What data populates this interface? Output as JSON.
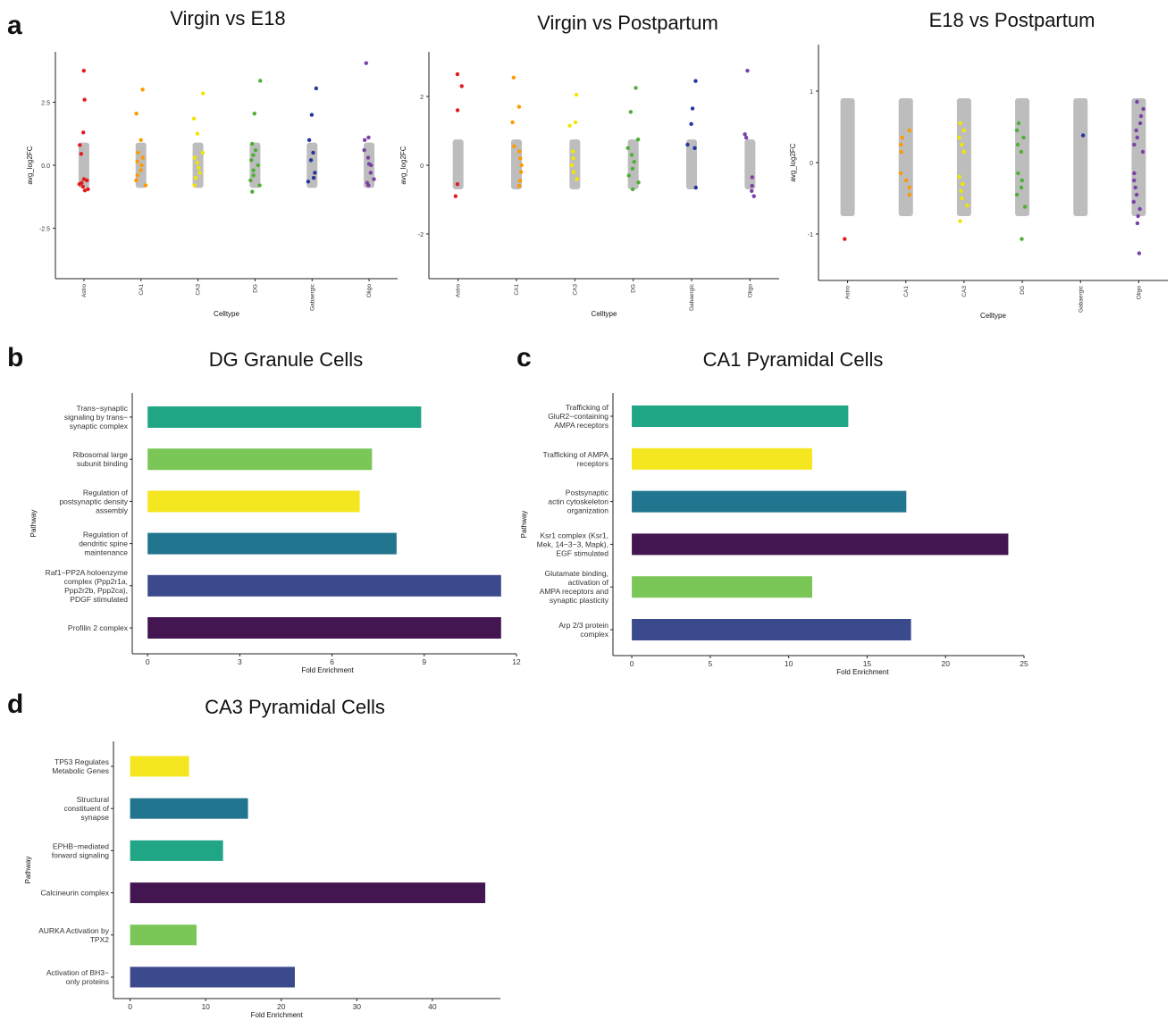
{
  "panel_letters": [
    "a",
    "b",
    "c",
    "d"
  ],
  "colors": {
    "Astro": "#e41a1c",
    "CA1": "#ff9900",
    "CA3": "#f2e600",
    "DG": "#4daf35",
    "Gabaergic": "#2436a0",
    "Oligo": "#7b3fa8",
    "gray": "#bdbdbd",
    "viridis_teal": "#21a685",
    "viridis_lightgreen": "#7ac656",
    "viridis_yellow": "#f4e61f",
    "viridis_blue": "#21758e",
    "viridis_indigo": "#3b4a8c",
    "viridis_purple": "#431652"
  },
  "chart_data": [
    {
      "type": "scatter",
      "title": "Virgin vs E18",
      "xlabel": "Celltype",
      "ylabel": "avg_log2FC",
      "categories": [
        "Astro",
        "CA1",
        "CA3",
        "DG",
        "Gabaergic",
        "Oligo"
      ],
      "yticks": [
        -2.5,
        0.0,
        2.5
      ],
      "ytick_labels": [
        "-2.5",
        "0.0",
        "2.5"
      ],
      "ylim": [
        -4.5,
        4.5
      ],
      "gray_band": [
        -0.9,
        0.9
      ],
      "points": {
        "Astro": [
          3.75,
          2.6,
          0.8,
          0.45,
          1.3,
          -0.55,
          -0.75,
          -0.95,
          -1.0,
          -0.85,
          -0.7,
          -0.6
        ],
        "CA1": [
          3.0,
          2.05,
          1.0,
          0.5,
          0.3,
          0.15,
          0.0,
          -0.2,
          -0.4,
          -0.6,
          -0.8
        ],
        "CA3": [
          2.85,
          1.85,
          1.25,
          0.5,
          0.3,
          0.1,
          -0.1,
          -0.3,
          -0.5,
          -0.8
        ],
        "DG": [
          3.35,
          2.05,
          0.85,
          0.6,
          0.4,
          0.2,
          0.0,
          -0.2,
          -0.4,
          -0.6,
          -0.8,
          -1.05
        ],
        "Gabaergic": [
          3.05,
          2.0,
          1.0,
          0.5,
          0.2,
          -0.3,
          -0.5,
          -0.65
        ],
        "Oligo": [
          4.05,
          1.1,
          1.0,
          0.6,
          0.3,
          0.0,
          -0.3,
          -0.55,
          -0.7,
          -0.8,
          0.05
        ]
      }
    },
    {
      "type": "scatter",
      "title": "Virgin vs Postpartum",
      "xlabel": "Celltype",
      "ylabel": "avg_log2FC",
      "categories": [
        "Astro",
        "CA1",
        "CA3",
        "DG",
        "Gabaergic",
        "Oligo"
      ],
      "yticks": [
        -2,
        0,
        2
      ],
      "ytick_labels": [
        "-2",
        "0",
        "2"
      ],
      "ylim": [
        -3.3,
        3.3
      ],
      "gray_band": [
        -0.7,
        0.75
      ],
      "points": {
        "Astro": [
          2.65,
          2.3,
          1.6,
          -0.55,
          -0.9
        ],
        "CA1": [
          2.55,
          1.7,
          1.25,
          0.55,
          0.4,
          0.2,
          0.0,
          -0.2,
          -0.45,
          -0.6
        ],
        "CA3": [
          2.05,
          1.25,
          1.15,
          0.4,
          0.2,
          0.0,
          -0.2,
          -0.4
        ],
        "DG": [
          2.25,
          1.55,
          0.75,
          0.5,
          0.3,
          0.1,
          -0.1,
          -0.3,
          -0.5,
          -0.7
        ],
        "Gabaergic": [
          2.45,
          1.65,
          1.2,
          0.6,
          0.5,
          -0.65
        ],
        "Oligo": [
          2.75,
          0.9,
          0.8,
          -0.35,
          -0.6,
          -0.75,
          -0.9
        ]
      }
    },
    {
      "type": "scatter",
      "title": "E18 vs Postpartum",
      "xlabel": "Celltype",
      "ylabel": "avg_log2FC",
      "categories": [
        "Astro",
        "CA1",
        "CA3",
        "DG",
        "Gabaergic",
        "Oligo"
      ],
      "yticks": [
        -1,
        0,
        1
      ],
      "ytick_labels": [
        "-1",
        "0",
        "1"
      ],
      "ylim": [
        -1.65,
        1.65
      ],
      "gray_band": [
        -0.75,
        0.9
      ],
      "points": {
        "Astro": [
          -1.07
        ],
        "CA1": [
          0.45,
          0.35,
          0.25,
          0.15,
          -0.15,
          -0.25,
          -0.35,
          -0.45
        ],
        "CA3": [
          0.55,
          0.45,
          0.35,
          0.25,
          0.15,
          -0.2,
          -0.3,
          -0.4,
          -0.5,
          -0.6,
          -0.82
        ],
        "DG": [
          0.55,
          0.45,
          0.35,
          0.25,
          0.15,
          -0.15,
          -0.25,
          -0.35,
          -0.45,
          -0.62,
          -1.07
        ],
        "Gabaergic": [
          0.38
        ],
        "Oligo": [
          0.85,
          0.75,
          0.65,
          0.55,
          0.45,
          0.35,
          0.25,
          0.15,
          -0.15,
          -0.25,
          -0.35,
          -0.45,
          -0.55,
          -0.65,
          -0.75,
          -0.85,
          -1.27
        ]
      }
    },
    {
      "type": "bar",
      "orientation": "horizontal",
      "title": "DG Granule Cells",
      "xlabel": "Fold Enrichment",
      "ylabel": "Pathway",
      "xticks": [
        0,
        3,
        6,
        9,
        12
      ],
      "xlim": [
        -0.5,
        12
      ],
      "categories": [
        [
          "Trans−synaptic",
          "signaling by trans−",
          "synaptic complex"
        ],
        [
          "Ribosomal large",
          "subunit binding"
        ],
        [
          "Regulation of",
          "postsynaptic density",
          "assembly"
        ],
        [
          "Regulation of",
          "dendritic spine",
          "maintenance"
        ],
        [
          "Raf1−PP2A holoenzyme",
          "complex (Ppp2r1a,",
          "Ppp2r2b, Ppp2ca),",
          "PDGF stimulated"
        ],
        [
          "Profilin 2 complex"
        ]
      ],
      "values": [
        8.9,
        7.3,
        6.9,
        8.1,
        11.5,
        11.5
      ],
      "bar_colors": [
        "viridis_teal",
        "viridis_lightgreen",
        "viridis_yellow",
        "viridis_blue",
        "viridis_indigo",
        "viridis_purple"
      ]
    },
    {
      "type": "bar",
      "orientation": "horizontal",
      "title": "CA1 Pyramidal Cells",
      "xlabel": "Fold Enrichment",
      "ylabel": "Pathway",
      "xticks": [
        0,
        5,
        10,
        15,
        20,
        25
      ],
      "xlim": [
        -1.2,
        25
      ],
      "categories": [
        [
          "Trafficking of",
          "GluR2−containing",
          "AMPA receptors"
        ],
        [
          "Trafficking of AMPA",
          "receptors"
        ],
        [
          "Postsynaptic",
          "actin cytoskeleton",
          "organization"
        ],
        [
          "Ksr1 complex (Ksr1,",
          "Mek, 14−3−3, Mapk),",
          "EGF stimulated"
        ],
        [
          "Glutamate binding,",
          "activation of",
          "AMPA receptors and",
          "synaptic plasticity"
        ],
        [
          "Arp 2/3 protein",
          "complex"
        ]
      ],
      "values": [
        13.8,
        11.5,
        17.5,
        24.0,
        11.5,
        17.8
      ],
      "bar_colors": [
        "viridis_teal",
        "viridis_yellow",
        "viridis_blue",
        "viridis_purple",
        "viridis_lightgreen",
        "viridis_indigo"
      ]
    },
    {
      "type": "bar",
      "orientation": "horizontal",
      "title": "CA3 Pyramidal Cells",
      "xlabel": "Fold Enrichment",
      "ylabel": "Pathway",
      "xticks": [
        0,
        10,
        20,
        30,
        40
      ],
      "xlim": [
        -2.2,
        49
      ],
      "categories": [
        [
          "TP53 Regulates",
          "Metabolic Genes"
        ],
        [
          "Structural",
          "constituent of",
          "synapse"
        ],
        [
          "EPHB−mediated",
          "forward signaling"
        ],
        [
          "Calcineurin complex"
        ],
        [
          "AURKA Activation by",
          "TPX2"
        ],
        [
          "Activation of BH3−",
          "only proteins"
        ]
      ],
      "values": [
        7.8,
        15.6,
        12.3,
        47.0,
        8.8,
        21.8
      ],
      "bar_colors": [
        "viridis_yellow",
        "viridis_blue",
        "viridis_teal",
        "viridis_purple",
        "viridis_lightgreen",
        "viridis_indigo"
      ]
    }
  ]
}
